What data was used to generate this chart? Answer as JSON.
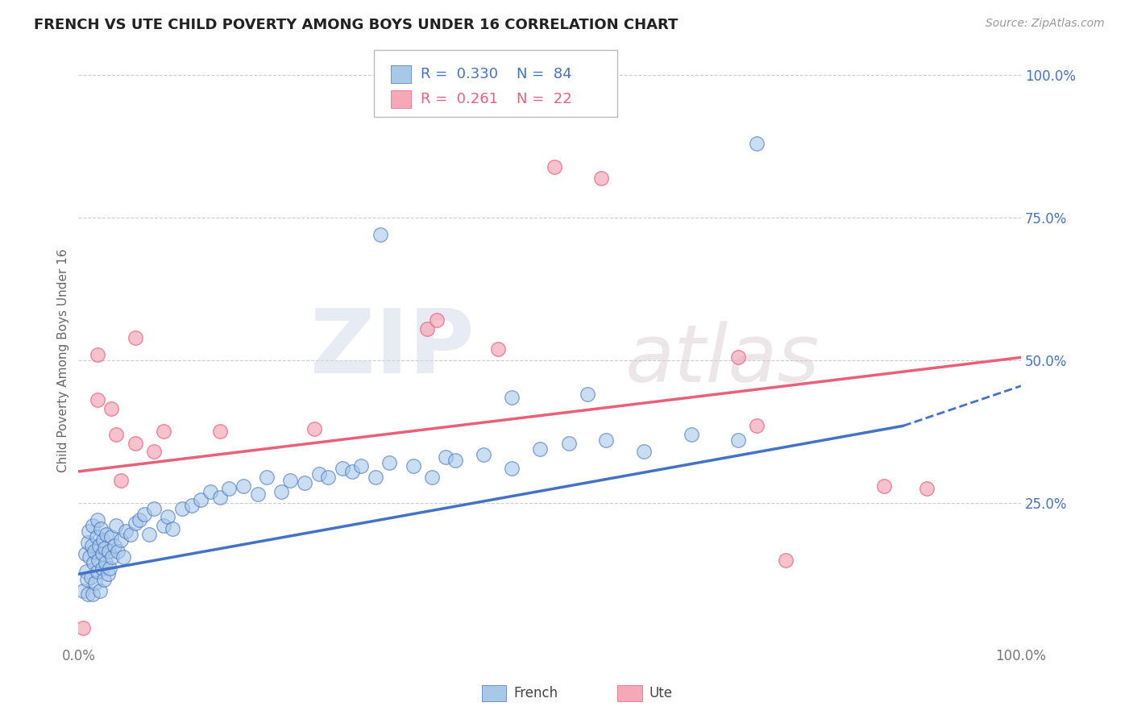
{
  "title": "FRENCH VS UTE CHILD POVERTY AMONG BOYS UNDER 16 CORRELATION CHART",
  "source": "Source: ZipAtlas.com",
  "ylabel": "Child Poverty Among Boys Under 16",
  "xlim": [
    0,
    1
  ],
  "ylim": [
    0,
    1
  ],
  "ytick_labels": [
    "25.0%",
    "50.0%",
    "75.0%",
    "100.0%"
  ],
  "ytick_positions": [
    0.25,
    0.5,
    0.75,
    1.0
  ],
  "french_R": 0.33,
  "french_N": 84,
  "ute_R": 0.261,
  "ute_N": 22,
  "french_color": "#a8c8e8",
  "ute_color": "#f4a8b8",
  "french_line_color": "#4472C4",
  "ute_line_color": "#E8607A",
  "watermark_zip": "ZIP",
  "watermark_atlas": "atlas",
  "background_color": "#ffffff",
  "grid_color": "#cccccc",
  "french_line": [
    0.0,
    0.125,
    0.875,
    0.385
  ],
  "french_dash": [
    0.875,
    0.385,
    1.0,
    0.455
  ],
  "ute_line": [
    0.0,
    0.305,
    1.0,
    0.505
  ],
  "french_x": [
    0.005,
    0.007,
    0.008,
    0.009,
    0.01,
    0.01,
    0.011,
    0.012,
    0.013,
    0.014,
    0.015,
    0.015,
    0.016,
    0.017,
    0.018,
    0.019,
    0.02,
    0.02,
    0.021,
    0.022,
    0.023,
    0.024,
    0.025,
    0.025,
    0.026,
    0.027,
    0.028,
    0.029,
    0.03,
    0.031,
    0.032,
    0.033,
    0.035,
    0.036,
    0.038,
    0.04,
    0.042,
    0.045,
    0.048,
    0.05,
    0.055,
    0.06,
    0.065,
    0.07,
    0.075,
    0.08,
    0.09,
    0.095,
    0.1,
    0.11,
    0.12,
    0.13,
    0.14,
    0.15,
    0.16,
    0.175,
    0.19,
    0.2,
    0.215,
    0.225,
    0.24,
    0.255,
    0.265,
    0.28,
    0.29,
    0.3,
    0.315,
    0.33,
    0.355,
    0.375,
    0.39,
    0.4,
    0.43,
    0.46,
    0.49,
    0.52,
    0.56,
    0.6,
    0.65,
    0.7,
    0.32,
    0.46,
    0.54,
    0.72
  ],
  "french_y": [
    0.095,
    0.16,
    0.13,
    0.115,
    0.18,
    0.09,
    0.2,
    0.155,
    0.12,
    0.175,
    0.09,
    0.21,
    0.145,
    0.165,
    0.11,
    0.19,
    0.13,
    0.22,
    0.15,
    0.175,
    0.095,
    0.205,
    0.135,
    0.16,
    0.185,
    0.115,
    0.17,
    0.145,
    0.195,
    0.125,
    0.165,
    0.135,
    0.19,
    0.155,
    0.175,
    0.21,
    0.165,
    0.185,
    0.155,
    0.2,
    0.195,
    0.215,
    0.22,
    0.23,
    0.195,
    0.24,
    0.21,
    0.225,
    0.205,
    0.24,
    0.245,
    0.255,
    0.27,
    0.26,
    0.275,
    0.28,
    0.265,
    0.295,
    0.27,
    0.29,
    0.285,
    0.3,
    0.295,
    0.31,
    0.305,
    0.315,
    0.295,
    0.32,
    0.315,
    0.295,
    0.33,
    0.325,
    0.335,
    0.31,
    0.345,
    0.355,
    0.36,
    0.34,
    0.37,
    0.36,
    0.72,
    0.435,
    0.44,
    0.88
  ],
  "ute_x": [
    0.005,
    0.02,
    0.02,
    0.035,
    0.04,
    0.045,
    0.06,
    0.06,
    0.08,
    0.09,
    0.15,
    0.25,
    0.37,
    0.38,
    0.445,
    0.505,
    0.555,
    0.7,
    0.72,
    0.75,
    0.855,
    0.9
  ],
  "ute_y": [
    0.03,
    0.51,
    0.43,
    0.415,
    0.37,
    0.29,
    0.54,
    0.355,
    0.34,
    0.375,
    0.375,
    0.38,
    0.555,
    0.57,
    0.52,
    0.84,
    0.82,
    0.505,
    0.385,
    0.15,
    0.28,
    0.275
  ]
}
